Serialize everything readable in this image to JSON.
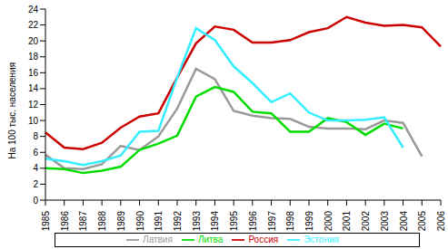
{
  "chart_data": {
    "type": "line",
    "y_label": "На 100 тыс. населения",
    "categories": [
      "1985",
      "1986",
      "1987",
      "1988",
      "1989",
      "1990",
      "1991",
      "1992",
      "1993",
      "1994",
      "1995",
      "1996",
      "1997",
      "1998",
      "1999",
      "2000",
      "2001",
      "2002",
      "2003",
      "2004",
      "2005",
      "2006"
    ],
    "series": [
      {
        "name": "Россия",
        "color": "#cc0000",
        "values": [
          8.5,
          6.6,
          6.4,
          7.2,
          9.1,
          10.5,
          10.9,
          15.4,
          19.7,
          21.8,
          21.4,
          19.8,
          19.8,
          20.1,
          21.1,
          21.6,
          23.0,
          22.3,
          21.9,
          22.0,
          21.7,
          19.3
        ]
      },
      {
        "name": "Латвия",
        "color": "#999999",
        "values": [
          5.7,
          4.0,
          3.9,
          4.5,
          6.8,
          6.3,
          8.0,
          11.5,
          16.5,
          15.2,
          11.2,
          10.6,
          10.3,
          10.2,
          9.2,
          9.0,
          9.0,
          8.9,
          10.0,
          9.7,
          5.5,
          null
        ]
      },
      {
        "name": "Литва",
        "color": "#00dd00",
        "values": [
          4.0,
          3.9,
          3.4,
          3.7,
          4.2,
          6.3,
          7.1,
          8.1,
          13.0,
          14.2,
          13.6,
          11.1,
          10.9,
          8.6,
          8.6,
          10.3,
          9.8,
          8.2,
          9.6,
          9.0,
          null,
          null
        ]
      },
      {
        "name": "Эстония",
        "color": "#33eeff",
        "values": [
          5.2,
          4.9,
          4.4,
          4.9,
          5.6,
          8.6,
          8.7,
          15.4,
          21.6,
          20.1,
          16.8,
          14.7,
          12.3,
          13.4,
          11.0,
          10.0,
          10.0,
          10.1,
          10.4,
          6.6,
          null,
          null
        ]
      }
    ],
    "ylim": [
      0,
      24
    ],
    "yticks": [
      0,
      2,
      4,
      6,
      8,
      10,
      12,
      14,
      16,
      18,
      20,
      22,
      24
    ],
    "grid": false,
    "legend": "bottom"
  }
}
